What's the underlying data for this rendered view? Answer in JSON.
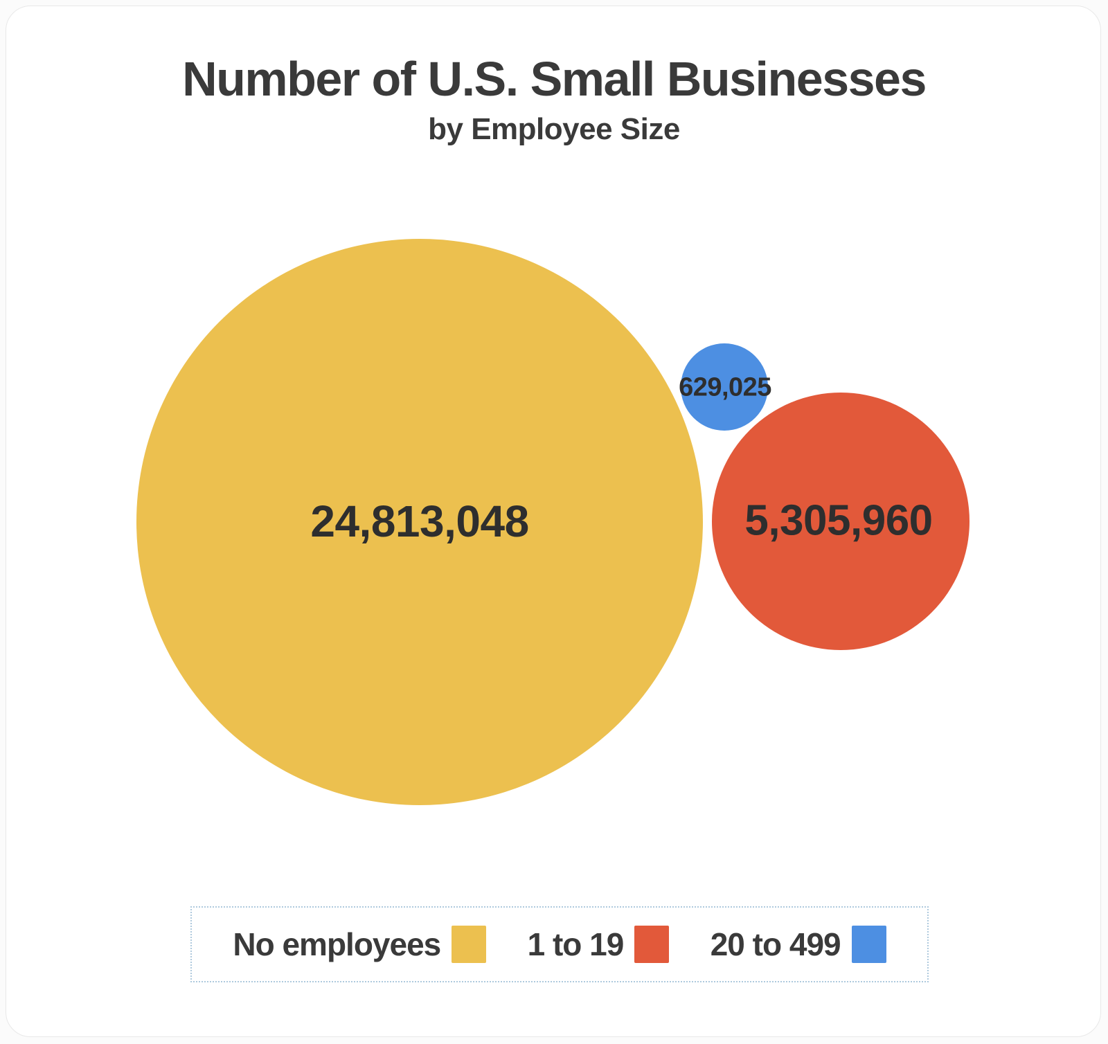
{
  "title": "Number of U.S. Small Businesses",
  "subtitle": "by Employee Size",
  "chart_data": {
    "type": "bubble",
    "title": "Number of U.S. Small Businesses",
    "subtitle": "by Employee Size",
    "series": [
      {
        "name": "No employees",
        "value": 24813048,
        "label": "24,813,048",
        "color": "#ECC04F"
      },
      {
        "name": "1 to 19",
        "value": 5305960,
        "label": "5,305,960",
        "color": "#E2593A"
      },
      {
        "name": "20 to 499",
        "value": 629025,
        "label": "629,025",
        "color": "#4D8FE2"
      }
    ],
    "legend_position": "bottom",
    "label_color": "#2e2e2e",
    "title_color": "#3a3a3a"
  }
}
